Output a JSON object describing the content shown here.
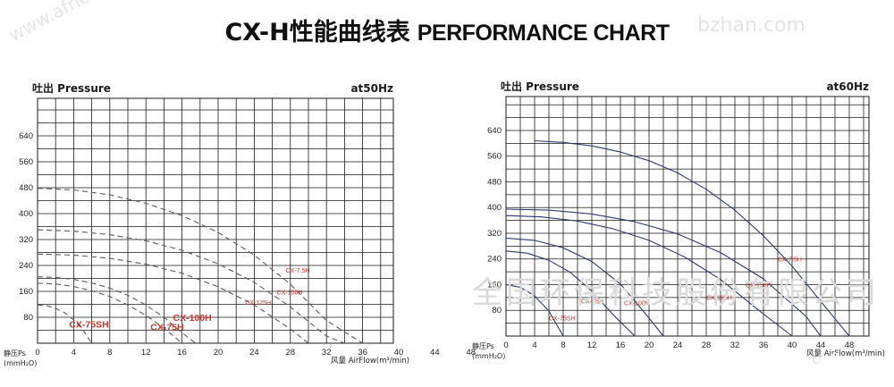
{
  "header": {
    "title_cn": "CX-H性能曲线表",
    "title_en": "PERFORMANCE CHART"
  },
  "watermarks": {
    "main": "全国环保科技股份有限公司",
    "left": "www.africa.cn",
    "right": "bzhan.com",
    "bottom_right": "cn..."
  },
  "chart_data": [
    {
      "type": "line",
      "title": "吐出 Pressure",
      "frequency_label": "at50Hz",
      "ylabel": "静压Ps",
      "ylabel_unit": "(mmH₂O)",
      "xlabel": "风量 AirFlow(m³/min)",
      "xlim": [
        0,
        50
      ],
      "ylim": [
        0,
        720
      ],
      "x_ticks": [
        0,
        4,
        8,
        12,
        16,
        20,
        24,
        28,
        32,
        36,
        40,
        44,
        48
      ],
      "y_ticks": [
        80,
        160,
        240,
        320,
        400,
        480,
        560,
        640
      ],
      "grid": true,
      "line_style": "dashed",
      "series": [
        {
          "name": "CX-75SH",
          "x": [
            0,
            1,
            2,
            3,
            4,
            5,
            6
          ],
          "y": [
            118,
            116,
            108,
            94,
            72,
            42,
            0
          ]
        },
        {
          "name": "CX-75H",
          "x": [
            0,
            2,
            4,
            6,
            8,
            10,
            12,
            14,
            16
          ],
          "y": [
            185,
            183,
            175,
            162,
            144,
            118,
            86,
            46,
            0
          ]
        },
        {
          "name": "CX-100H",
          "x": [
            0,
            2,
            4,
            6,
            8,
            10,
            12,
            14,
            16,
            17.5
          ],
          "y": [
            205,
            203,
            197,
            186,
            170,
            148,
            118,
            80,
            32,
            0
          ]
        },
        {
          "name": "CX-125H",
          "x": [
            0,
            4,
            8,
            12,
            16,
            20,
            24,
            28,
            30
          ],
          "y": [
            275,
            272,
            262,
            244,
            216,
            174,
            118,
            44,
            0
          ]
        },
        {
          "name": "CX-150H",
          "x": [
            0,
            4,
            8,
            12,
            16,
            20,
            24,
            28,
            32,
            34
          ],
          "y": [
            350,
            346,
            335,
            316,
            287,
            245,
            188,
            112,
            22,
            0
          ]
        },
        {
          "name": "CX-7.5H",
          "x": [
            0,
            4,
            8,
            12,
            16,
            20,
            24,
            28,
            32,
            36
          ],
          "y": [
            478,
            473,
            458,
            432,
            394,
            342,
            272,
            182,
            70,
            0
          ]
        }
      ],
      "annotations": [
        {
          "text": "CX-75SH",
          "x": 3.5,
          "y": 48
        },
        {
          "text": "CX-75H",
          "x": 12.5,
          "y": 40
        },
        {
          "text": "CX-100H",
          "x": 15,
          "y": 69
        },
        {
          "text": "CX-125H",
          "x": 23,
          "y": 118
        },
        {
          "text": "CX-150H",
          "x": 26.5,
          "y": 150
        },
        {
          "text": "CX-7.5H",
          "x": 27.5,
          "y": 218
        }
      ]
    },
    {
      "type": "line",
      "title": "吐出 Pressure",
      "frequency_label": "at60Hz",
      "ylabel": "静压Ps",
      "ylabel_unit": "(mmH₂O)",
      "xlabel": "风量 AirFlow(m³/min)",
      "xlim": [
        0,
        52
      ],
      "ylim": [
        0,
        720
      ],
      "x_ticks": [
        0,
        4,
        8,
        12,
        16,
        20,
        24,
        28,
        32,
        36,
        40,
        44,
        48
      ],
      "y_ticks": [
        80,
        160,
        240,
        320,
        400,
        480,
        560,
        640
      ],
      "grid": true,
      "line_style": "solid",
      "series": [
        {
          "name": "CX-75SH",
          "x": [
            0,
            2,
            4,
            6,
            8
          ],
          "y": [
            160,
            152,
            125,
            78,
            0
          ]
        },
        {
          "name": "CX-75H",
          "x": [
            0,
            3,
            6,
            9,
            12,
            15,
            18
          ],
          "y": [
            265,
            258,
            236,
            198,
            140,
            66,
            0
          ]
        },
        {
          "name": "CX-100H",
          "x": [
            0,
            4,
            8,
            12,
            16,
            20,
            22
          ],
          "y": [
            305,
            298,
            275,
            232,
            162,
            56,
            0
          ]
        },
        {
          "name": "CX-125H",
          "x": [
            0,
            5,
            10,
            15,
            20,
            25,
            30,
            35,
            40
          ],
          "y": [
            375,
            371,
            358,
            334,
            298,
            246,
            176,
            86,
            0
          ]
        },
        {
          "name": "CX-150H",
          "x": [
            0,
            6,
            12,
            18,
            24,
            30,
            36,
            42,
            44
          ],
          "y": [
            395,
            392,
            380,
            356,
            318,
            260,
            178,
            60,
            0
          ]
        },
        {
          "name": "CX-7.5H",
          "x": [
            4,
            8,
            12,
            16,
            20,
            24,
            28,
            32,
            36,
            40,
            44,
            48
          ],
          "y": [
            608,
            603,
            592,
            573,
            546,
            508,
            457,
            392,
            312,
            218,
            108,
            0
          ]
        }
      ],
      "annotations": [
        {
          "text": "CX-75SH",
          "x": 6,
          "y": 48
        },
        {
          "text": "CX-75H",
          "x": 10.5,
          "y": 102
        },
        {
          "text": "CX-100H",
          "x": 16.5,
          "y": 96
        },
        {
          "text": "CX-125H",
          "x": 28,
          "y": 112
        },
        {
          "text": "CX-150H",
          "x": 33.5,
          "y": 152
        },
        {
          "text": "CX-7.5H",
          "x": 38,
          "y": 232
        }
      ]
    }
  ],
  "colors": {
    "grid": "#1a1a1a",
    "left_curve": "#5a5a5a",
    "right_curve": "#2a3a6a",
    "label_red": "#c0392b",
    "title_text": "#1a1a1a"
  }
}
